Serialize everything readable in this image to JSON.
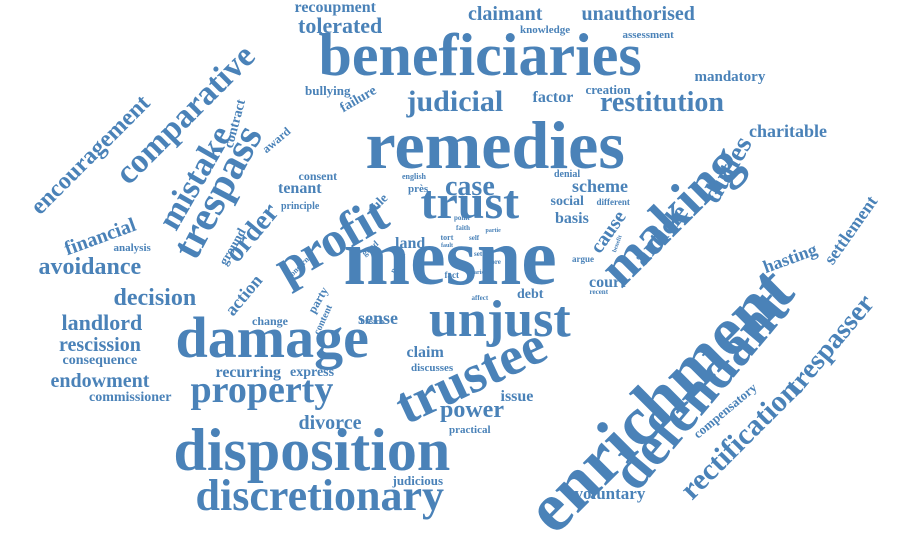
{
  "color": "#4A82B8",
  "words": [
    "enrichment",
    "mesne",
    "remedies",
    "beneficiaries",
    "damage",
    "disposition",
    "trustee",
    "unjust",
    "discretionary",
    "profit",
    "defendant",
    "making",
    "trust",
    "trespass",
    "property",
    "mistake",
    "comparative",
    "encouragement",
    "judicial",
    "restitution",
    "order",
    "case",
    "article",
    "duties",
    "avoidance",
    "decision",
    "landlord",
    "rescission",
    "endowment",
    "power",
    "divorce",
    "rectification",
    "trespasser",
    "financial",
    "tolerated",
    "claimant",
    "unauthorised",
    "recoupment",
    "scheme",
    "charitable",
    "mandatory",
    "hasting",
    "settlement",
    "voluntary",
    "judicious",
    "contract",
    "tenant",
    "land",
    "sense",
    "debt",
    "court",
    "claim",
    "issue",
    "basis",
    "social",
    "factor",
    "creation",
    "bullying",
    "failure",
    "award",
    "consent",
    "principle",
    "ground",
    "analysis",
    "action",
    "change",
    "party",
    "content",
    "breach",
    "consequence",
    "commissioner",
    "express",
    "recurring",
    "discusses",
    "practical",
    "compensatory",
    "cause",
    "knowledge",
    "assessment",
    "denial",
    "english",
    "près",
    "different",
    "rule",
    "point",
    "faith",
    "good",
    "period",
    "self",
    "tort",
    "fault",
    "partie",
    "benefit",
    "argue",
    "set",
    "fact",
    "more",
    "affect",
    "recent",
    "arise",
    "concern"
  ]
}
